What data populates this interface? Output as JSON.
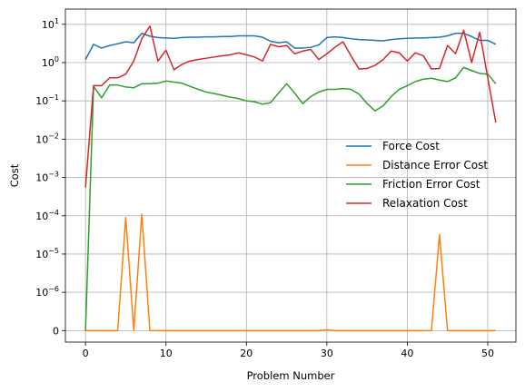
{
  "chart_data": {
    "type": "line",
    "title": "",
    "xlabel": "Problem Number",
    "ylabel": "Cost",
    "xlim": [
      -2.5,
      53.5
    ],
    "yscale": "symlog",
    "y_linear_threshold": 1e-06,
    "ylim": [
      -3e-07,
      25
    ],
    "grid": true,
    "legend_position": "center-right",
    "x_ticks": [
      0,
      10,
      20,
      30,
      40,
      50
    ],
    "y_ticks": [
      {
        "value": 0,
        "label": "0"
      },
      {
        "value": 1e-06,
        "base": "10",
        "exp": "−6"
      },
      {
        "value": 1e-05,
        "base": "10",
        "exp": "−5"
      },
      {
        "value": 0.0001,
        "base": "10",
        "exp": "−4"
      },
      {
        "value": 0.001,
        "base": "10",
        "exp": "−3"
      },
      {
        "value": 0.01,
        "base": "10",
        "exp": "−2"
      },
      {
        "value": 0.1,
        "base": "10",
        "exp": "−1"
      },
      {
        "value": 1,
        "base": "10",
        "exp": "0"
      },
      {
        "value": 10,
        "base": "10",
        "exp": "1"
      }
    ],
    "series": [
      {
        "name": "Force Cost",
        "color": "#1f77b4",
        "x": [
          0,
          1,
          2,
          3,
          4,
          5,
          6,
          7,
          8,
          9,
          10,
          11,
          12,
          13,
          14,
          15,
          16,
          17,
          18,
          19,
          20,
          21,
          22,
          23,
          24,
          25,
          26,
          27,
          28,
          29,
          30,
          31,
          32,
          33,
          34,
          35,
          36,
          37,
          38,
          39,
          40,
          41,
          42,
          43,
          44,
          45,
          46,
          47,
          48,
          49,
          50,
          51
        ],
        "y": [
          1.2,
          3.0,
          2.4,
          2.8,
          3.1,
          3.5,
          3.3,
          5.8,
          4.9,
          4.5,
          4.4,
          4.3,
          4.5,
          4.6,
          4.6,
          4.7,
          4.7,
          4.8,
          4.8,
          5.0,
          5.0,
          5.0,
          4.6,
          3.6,
          3.3,
          3.5,
          2.4,
          2.4,
          2.5,
          2.9,
          4.5,
          4.7,
          4.5,
          4.2,
          4.0,
          3.9,
          3.8,
          3.7,
          4.0,
          4.2,
          4.3,
          4.4,
          4.4,
          4.5,
          4.6,
          5.0,
          5.8,
          5.8,
          4.8,
          3.8,
          3.8,
          3.0
        ]
      },
      {
        "name": "Distance Error Cost",
        "color": "#ff7f0e",
        "x": [
          0,
          1,
          2,
          3,
          4,
          5,
          6,
          7,
          8,
          9,
          10,
          11,
          12,
          13,
          14,
          15,
          16,
          17,
          18,
          19,
          20,
          21,
          22,
          23,
          24,
          25,
          26,
          27,
          28,
          29,
          30,
          31,
          32,
          33,
          34,
          35,
          36,
          37,
          38,
          39,
          40,
          41,
          42,
          43,
          44,
          45,
          46,
          47,
          48,
          49,
          50,
          51
        ],
        "y": [
          0,
          0,
          0,
          0,
          0,
          9e-05,
          0,
          0.00011,
          0,
          0,
          0,
          0,
          0,
          0,
          0,
          0,
          0,
          0,
          0,
          0,
          0,
          0,
          0,
          0,
          0,
          0,
          0,
          0,
          0,
          0,
          2e-08,
          0,
          0,
          0,
          0,
          0,
          0,
          0,
          0,
          0,
          0,
          0,
          0,
          0,
          3.2e-05,
          0,
          0,
          0,
          0,
          0,
          0,
          0
        ]
      },
      {
        "name": "Friction Error Cost",
        "color": "#2ca02c",
        "x": [
          0,
          1,
          2,
          3,
          4,
          5,
          6,
          7,
          8,
          9,
          10,
          11,
          12,
          13,
          14,
          15,
          16,
          17,
          18,
          19,
          20,
          21,
          22,
          23,
          24,
          25,
          26,
          27,
          28,
          29,
          30,
          31,
          32,
          33,
          34,
          35,
          36,
          37,
          38,
          39,
          40,
          41,
          42,
          43,
          44,
          45,
          46,
          47,
          48,
          49,
          50,
          51
        ],
        "y": [
          0,
          0.24,
          0.12,
          0.26,
          0.26,
          0.23,
          0.22,
          0.28,
          0.28,
          0.29,
          0.33,
          0.31,
          0.29,
          0.24,
          0.2,
          0.17,
          0.155,
          0.14,
          0.125,
          0.115,
          0.1,
          0.095,
          0.082,
          0.09,
          0.16,
          0.28,
          0.16,
          0.085,
          0.13,
          0.17,
          0.2,
          0.2,
          0.21,
          0.2,
          0.15,
          0.085,
          0.055,
          0.075,
          0.13,
          0.2,
          0.25,
          0.32,
          0.37,
          0.39,
          0.35,
          0.32,
          0.4,
          0.75,
          0.62,
          0.52,
          0.5,
          0.28
        ]
      },
      {
        "name": "Relaxation Cost",
        "color": "#d62728",
        "x": [
          0,
          1,
          2,
          3,
          4,
          5,
          6,
          7,
          8,
          9,
          10,
          11,
          12,
          13,
          14,
          15,
          16,
          17,
          18,
          19,
          20,
          21,
          22,
          23,
          24,
          25,
          26,
          27,
          28,
          29,
          30,
          31,
          32,
          33,
          34,
          35,
          36,
          37,
          38,
          39,
          40,
          41,
          42,
          43,
          44,
          45,
          46,
          47,
          48,
          49,
          50,
          51
        ],
        "y": [
          0.00055,
          0.25,
          0.25,
          0.4,
          0.4,
          0.5,
          1.1,
          4.2,
          9.0,
          1.1,
          2.1,
          0.65,
          0.9,
          1.1,
          1.2,
          1.3,
          1.4,
          1.5,
          1.6,
          1.8,
          1.6,
          1.4,
          1.1,
          3.0,
          2.6,
          2.8,
          1.7,
          2.0,
          2.2,
          1.2,
          1.7,
          2.5,
          3.5,
          1.5,
          0.68,
          0.7,
          0.85,
          1.2,
          2.0,
          1.8,
          1.1,
          1.8,
          1.5,
          0.68,
          0.7,
          2.8,
          1.7,
          7.0,
          1.0,
          6.2,
          0.4,
          0.027
        ]
      }
    ]
  }
}
